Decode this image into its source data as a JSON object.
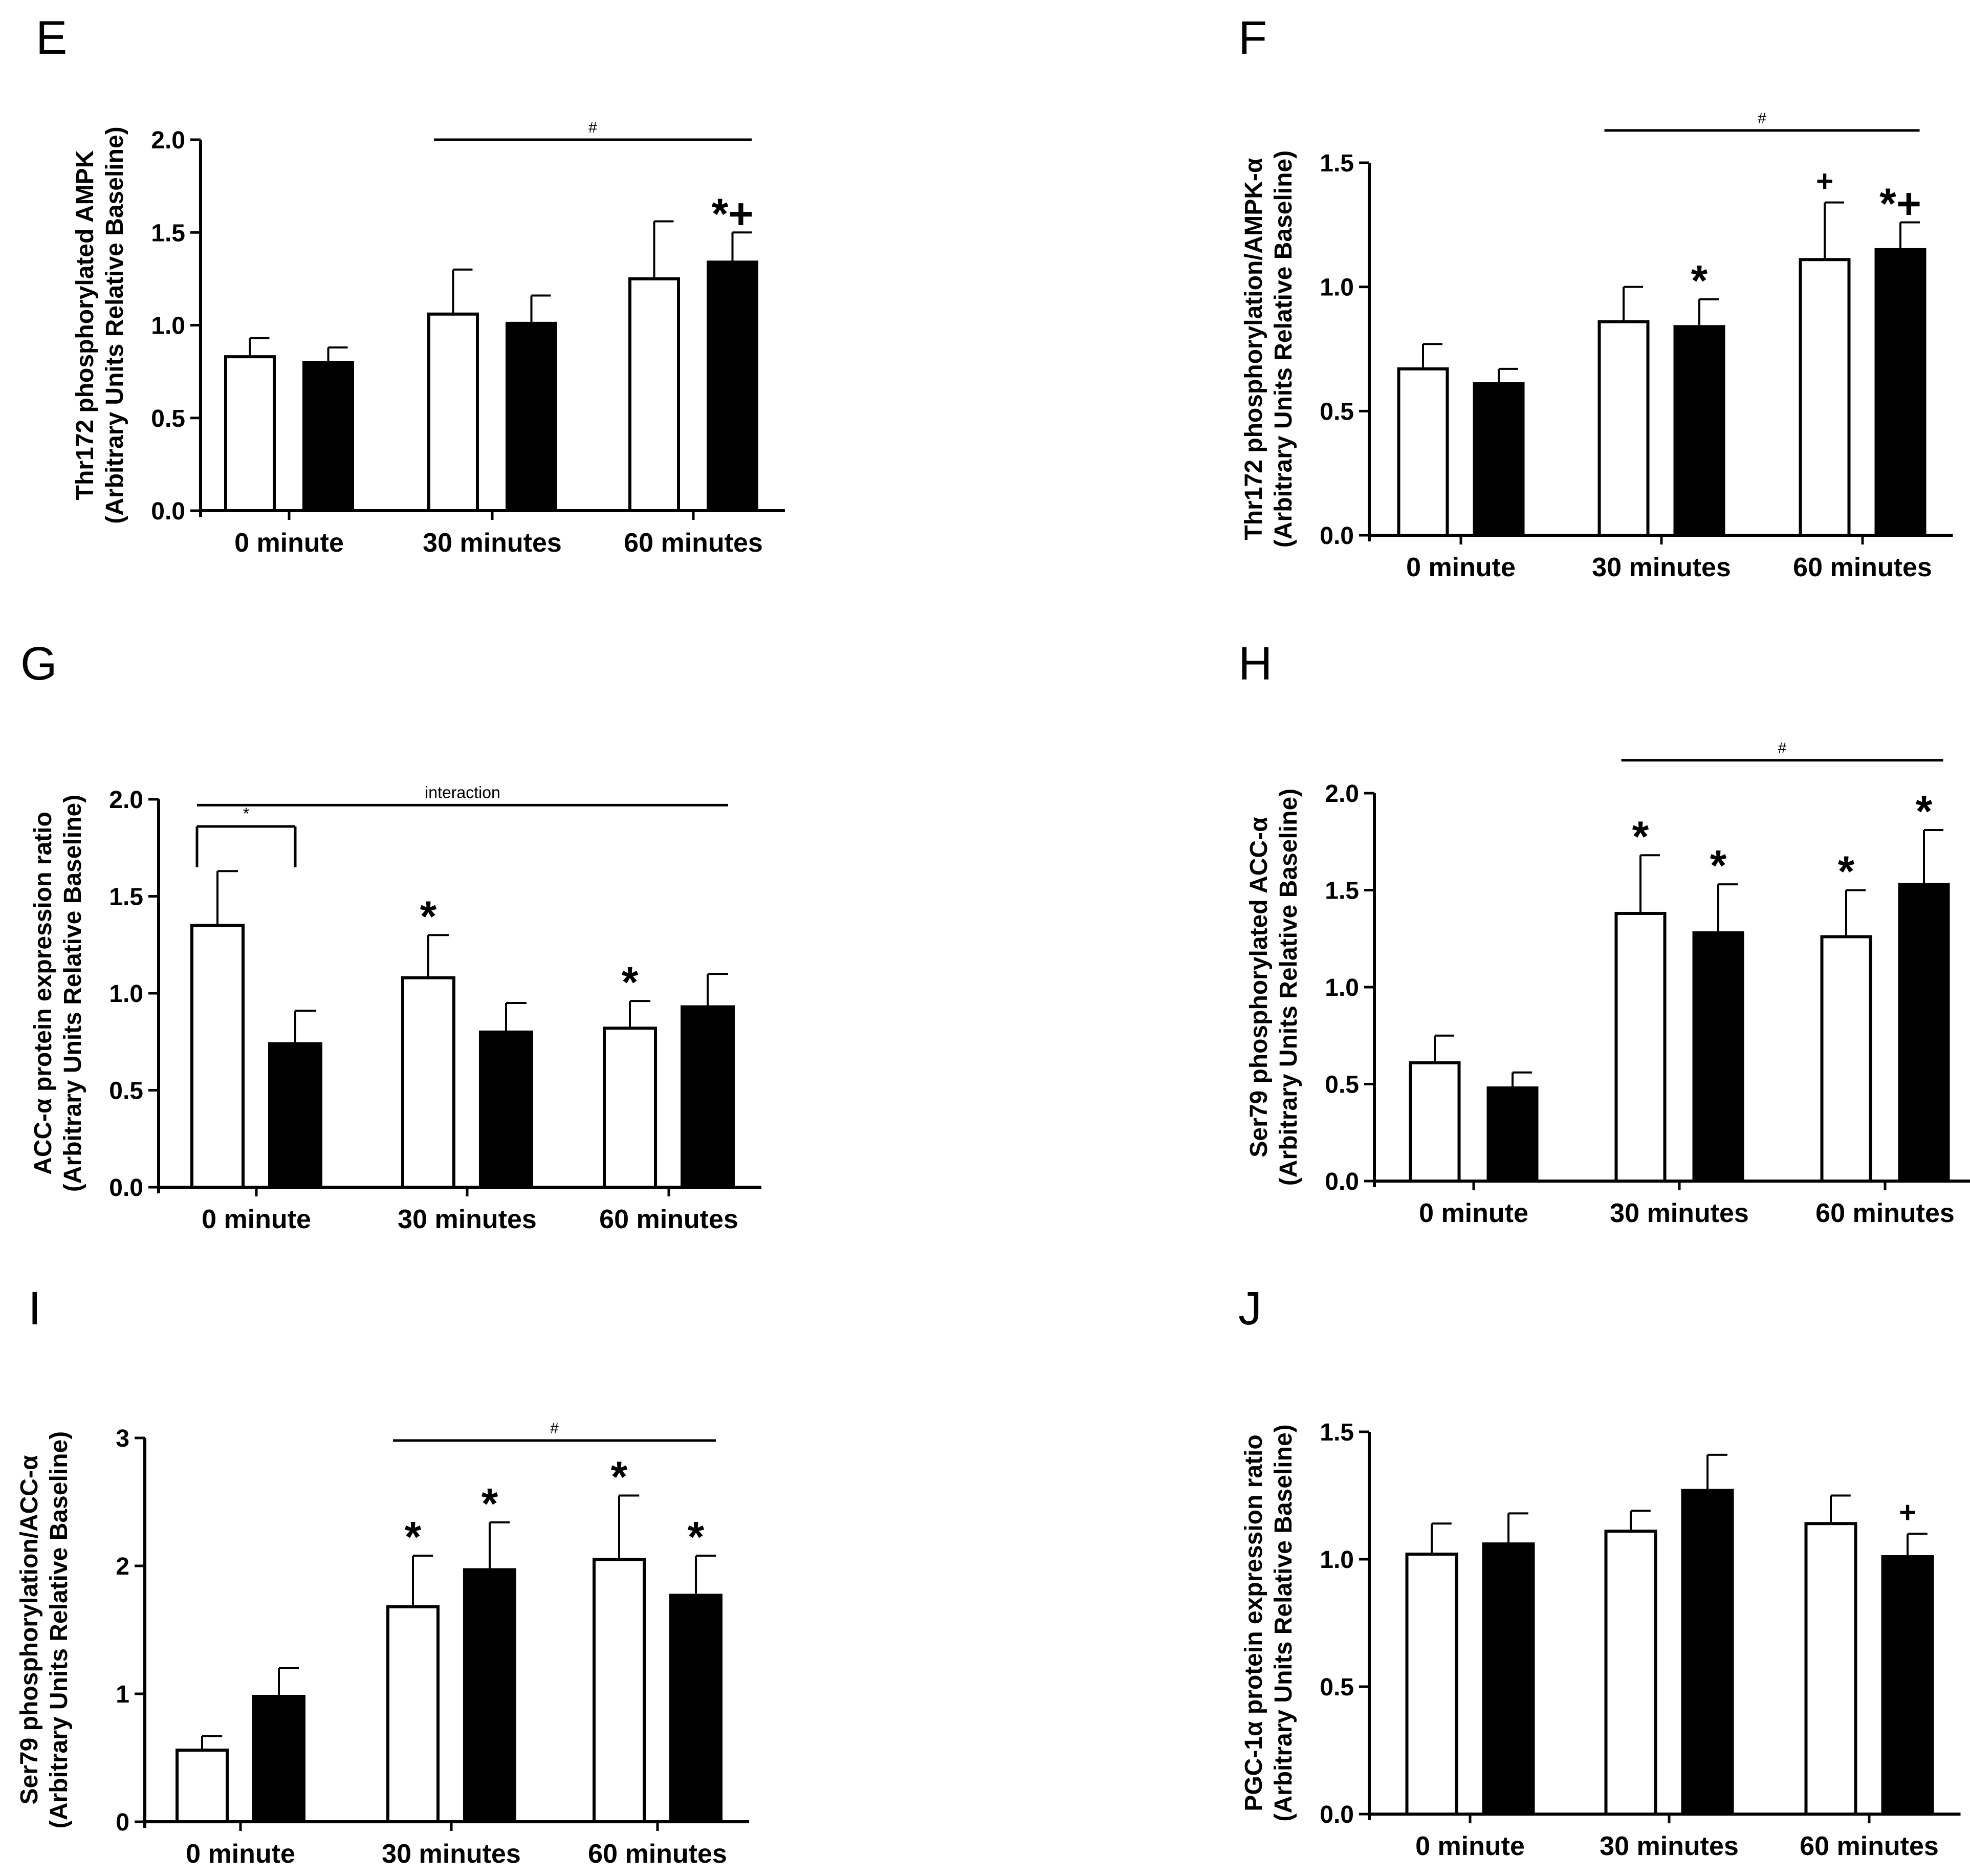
{
  "figure": {
    "colors": {
      "open_bar": "#ffffff",
      "filled_bar": "#000000",
      "stroke": "#000000"
    }
  },
  "chart_data": [
    {
      "panel": "E",
      "type": "bar",
      "categories": [
        "0 minute",
        "30 minutes",
        "60 minutes"
      ],
      "ylabel_lines": [
        "Thr172 phosphorylated AMPK",
        "(Arbitrary Units Relative Baseline)"
      ],
      "ylim": [
        0,
        2.0
      ],
      "ticks": [
        "0.0",
        "0.5",
        "1.0",
        "1.5",
        "2.0"
      ],
      "series": [
        {
          "name": "open",
          "values": [
            0.83,
            1.06,
            1.25
          ],
          "errors": [
            0.1,
            0.24,
            0.31
          ],
          "marks": [
            "",
            "",
            ""
          ]
        },
        {
          "name": "filled",
          "values": [
            0.8,
            1.01,
            1.34
          ],
          "errors": [
            0.08,
            0.15,
            0.16
          ],
          "marks": [
            "",
            "",
            "*+"
          ]
        }
      ],
      "brackets": [
        {
          "from": [
            1,
            0
          ],
          "to": [
            2,
            1
          ],
          "label": "#",
          "level": 2.0
        }
      ]
    },
    {
      "panel": "F",
      "type": "bar",
      "categories": [
        "0 minute",
        "30 minutes",
        "60 minutes"
      ],
      "ylabel_lines": [
        "Thr172 phosphorylation/AMPK-α",
        "(Arbitrary Units Relative Baseline)"
      ],
      "ylim": [
        0,
        1.5
      ],
      "ticks": [
        "0.0",
        "0.5",
        "1.0",
        "1.5"
      ],
      "series": [
        {
          "name": "open",
          "values": [
            0.67,
            0.86,
            1.11
          ],
          "errors": [
            0.1,
            0.14,
            0.23
          ],
          "marks": [
            "",
            "",
            "+"
          ]
        },
        {
          "name": "filled",
          "values": [
            0.61,
            0.84,
            1.15
          ],
          "errors": [
            0.06,
            0.11,
            0.11
          ],
          "marks": [
            "",
            "*",
            "*+"
          ]
        }
      ],
      "brackets": [
        {
          "from": [
            1,
            0
          ],
          "to": [
            2,
            1
          ],
          "label": "#",
          "level": 1.63
        }
      ]
    },
    {
      "panel": "G",
      "type": "bar",
      "categories": [
        "0 minute",
        "30 minutes",
        "60 minutes"
      ],
      "ylabel_lines": [
        "ACC-α protein expression ratio",
        "(Arbitrary Units Relative Baseline)"
      ],
      "ylim": [
        0,
        2.0
      ],
      "ticks": [
        "0.0",
        "0.5",
        "1.0",
        "1.5",
        "2.0"
      ],
      "series": [
        {
          "name": "open",
          "values": [
            1.35,
            1.08,
            0.82
          ],
          "errors": [
            0.28,
            0.22,
            0.14
          ],
          "marks": [
            "",
            "*",
            "*"
          ]
        },
        {
          "name": "filled",
          "values": [
            0.74,
            0.8,
            0.93
          ],
          "errors": [
            0.17,
            0.15,
            0.17
          ],
          "marks": [
            "",
            "",
            ""
          ]
        }
      ],
      "brackets": [
        {
          "from": [
            0,
            0
          ],
          "to": [
            2,
            1
          ],
          "label": "interaction",
          "level": 1.97
        },
        {
          "from": [
            0,
            0
          ],
          "to": [
            0,
            1
          ],
          "label": "*",
          "level": 1.86,
          "drop": 1.65
        }
      ]
    },
    {
      "panel": "H",
      "type": "bar",
      "categories": [
        "0 minute",
        "30 minutes",
        "60 minutes"
      ],
      "ylabel_lines": [
        "Ser79 phosphorylated ACC-α",
        "(Arbitrary Units Relative Baseline)"
      ],
      "ylim": [
        0,
        2.0
      ],
      "ticks": [
        "0.0",
        "0.5",
        "1.0",
        "1.5",
        "2.0"
      ],
      "series": [
        {
          "name": "open",
          "values": [
            0.61,
            1.38,
            1.26
          ],
          "errors": [
            0.14,
            0.3,
            0.24
          ],
          "marks": [
            "",
            "*",
            "*"
          ]
        },
        {
          "name": "filled",
          "values": [
            0.48,
            1.28,
            1.53
          ],
          "errors": [
            0.08,
            0.25,
            0.28
          ],
          "marks": [
            "",
            "*",
            "*"
          ]
        }
      ],
      "brackets": [
        {
          "from": [
            1,
            0
          ],
          "to": [
            2,
            1
          ],
          "label": "#",
          "level": 2.17
        }
      ]
    },
    {
      "panel": "I",
      "type": "bar",
      "categories": [
        "0 minute",
        "30 minutes",
        "60 minutes"
      ],
      "ylabel_lines": [
        "Ser79 phosphorylation/ACC-α",
        "(Arbitrary Units Relative Baseline)"
      ],
      "ylim": [
        0,
        3
      ],
      "ticks": [
        "0",
        "1",
        "2",
        "3"
      ],
      "series": [
        {
          "name": "open",
          "values": [
            0.56,
            1.68,
            2.05
          ],
          "errors": [
            0.11,
            0.4,
            0.5
          ],
          "marks": [
            "",
            "*",
            "*"
          ]
        },
        {
          "name": "filled",
          "values": [
            0.98,
            1.97,
            1.77
          ],
          "errors": [
            0.22,
            0.37,
            0.31
          ],
          "marks": [
            "",
            "*",
            "*"
          ]
        }
      ],
      "brackets": [
        {
          "from": [
            1,
            0
          ],
          "to": [
            2,
            1
          ],
          "label": "#",
          "level": 2.98
        }
      ]
    },
    {
      "panel": "J",
      "type": "bar",
      "categories": [
        "0 minute",
        "30 minutes",
        "60 minutes"
      ],
      "ylabel_lines": [
        "PGC-1α protein expression ratio",
        "(Arbitrary Units Relative Baseline)"
      ],
      "ylim": [
        0,
        1.5
      ],
      "ticks": [
        "0.0",
        "0.5",
        "1.0",
        "1.5"
      ],
      "series": [
        {
          "name": "open",
          "values": [
            1.02,
            1.11,
            1.14
          ],
          "errors": [
            0.12,
            0.08,
            0.11
          ],
          "marks": [
            "",
            "",
            ""
          ]
        },
        {
          "name": "filled",
          "values": [
            1.06,
            1.27,
            1.01
          ],
          "errors": [
            0.12,
            0.14,
            0.09
          ],
          "marks": [
            "",
            "",
            "+"
          ]
        }
      ],
      "brackets": []
    }
  ]
}
